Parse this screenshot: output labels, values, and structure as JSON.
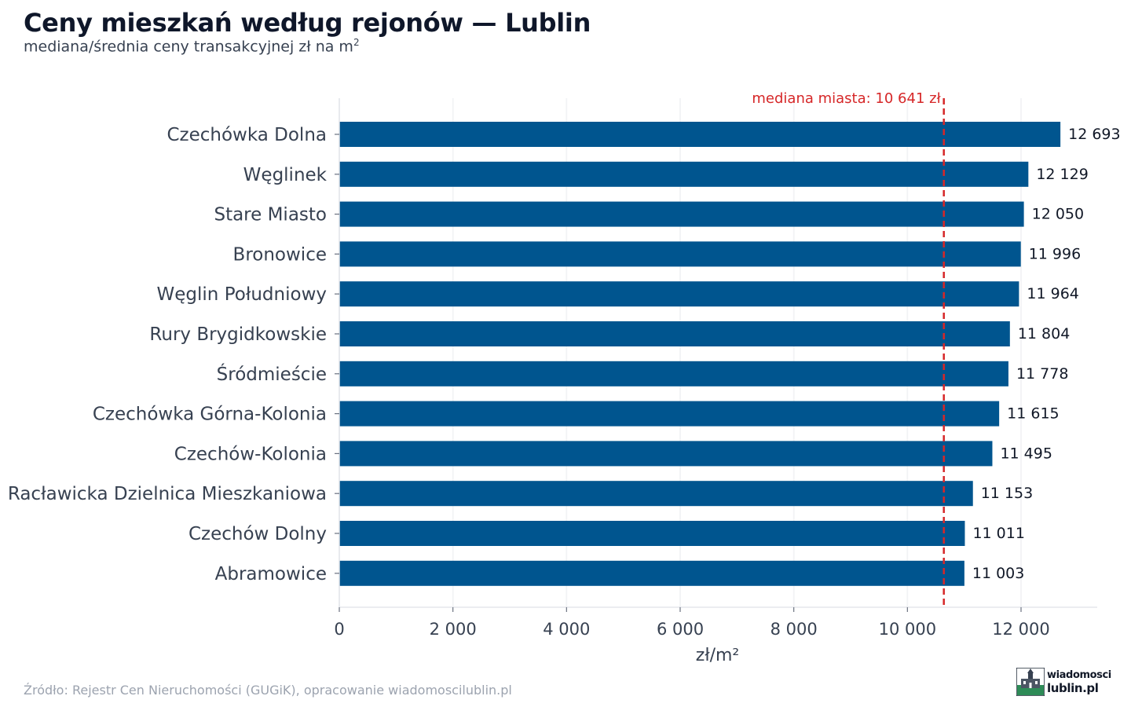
{
  "header": {
    "title": "Ceny mieszkań według rejonów — Lublin",
    "subtitle": "mediana/średnia ceny transakcyjnej zł na m",
    "subtitle_sup": "2"
  },
  "footer": {
    "source": "Źródło: Rejestr Cen Nieruchomości (GUGiK), opracowanie wiadomoscilublin.pl",
    "logo_line1": "wiadomosci",
    "logo_line2": "lublin.pl"
  },
  "chart_data": {
    "type": "bar",
    "orientation": "horizontal",
    "categories": [
      "Czechówka Dolna",
      "Węglinek",
      "Stare Miasto",
      "Bronowice",
      "Węglin Południowy",
      "Rury Brygidkowskie",
      "Śródmieście",
      "Czechówka Górna-Kolonia",
      "Czechów-Kolonia",
      "Racławicka Dzielnica Mieszkaniowa",
      "Czechów Dolny",
      "Abramowice"
    ],
    "values": [
      12693,
      12129,
      12050,
      11996,
      11964,
      11804,
      11778,
      11615,
      11495,
      11153,
      11011,
      11003
    ],
    "value_labels": [
      "12 693",
      "12 129",
      "12 050",
      "11 996",
      "11 964",
      "11 804",
      "11 778",
      "11 615",
      "11 495",
      "11 153",
      "11 011",
      "11 003"
    ],
    "xlabel": "zł/m²",
    "xlim": [
      0,
      13300
    ],
    "xticks": [
      0,
      2000,
      4000,
      6000,
      8000,
      10000,
      12000
    ],
    "xtick_labels": [
      "0",
      "2 000",
      "4 000",
      "6 000",
      "8 000",
      "10 000",
      "12 000"
    ],
    "reference_line": {
      "value": 10641,
      "label": "mediana miasta: 10 641 zł",
      "color": "#d62728"
    },
    "bar_color": "#00558f",
    "grid": true
  }
}
